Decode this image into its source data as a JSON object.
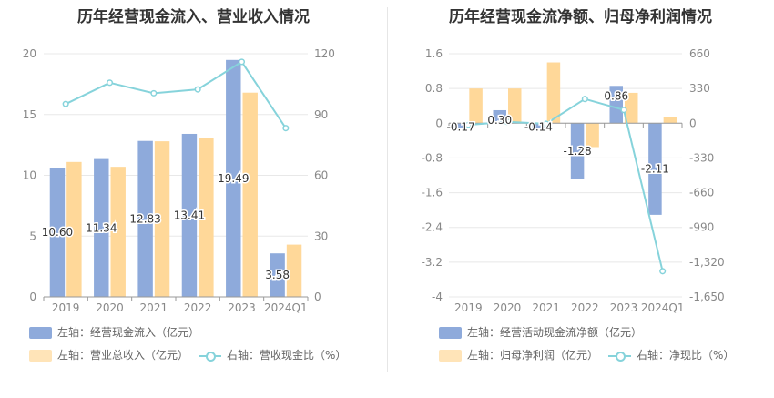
{
  "chart_data": [
    {
      "type": "bar",
      "title": "历年经营现金流入、营业收入情况",
      "categories": [
        "2019",
        "2020",
        "2021",
        "2022",
        "2023",
        "2024Q1"
      ],
      "left_axis": {
        "min": 0,
        "max": 20,
        "ticks": [
          "0",
          "5",
          "10",
          "15",
          "20"
        ]
      },
      "right_axis": {
        "min": 0,
        "max": 120,
        "ticks": [
          "0",
          "30",
          "60",
          "90",
          "120"
        ]
      },
      "series": [
        {
          "name": "左轴：经营现金流入（亿元）",
          "kind": "bar",
          "axis": "left",
          "color": "#8eaadb",
          "values": [
            10.6,
            11.34,
            12.83,
            13.41,
            19.49,
            3.58
          ],
          "labels": [
            "10.60",
            "11.34",
            "12.83",
            "13.41",
            "19.49",
            "3.58"
          ]
        },
        {
          "name": "左轴：营业总收入（亿元）",
          "kind": "bar",
          "axis": "left",
          "color": "#ffd899",
          "values": [
            11.1,
            10.7,
            12.8,
            13.1,
            16.8,
            4.3
          ]
        },
        {
          "name": "右轴：营收现金比（%）",
          "kind": "line",
          "axis": "right",
          "color": "#86d3db",
          "values": [
            95.2,
            105.7,
            100.5,
            102.4,
            116.0,
            83.3
          ]
        }
      ],
      "legend_position": "bottom-left",
      "grid": true
    },
    {
      "type": "bar",
      "title": "历年经营现金流净额、归母净利润情况",
      "categories": [
        "2019",
        "2020",
        "2021",
        "2022",
        "2023",
        "2024Q1"
      ],
      "left_axis": {
        "min": -4,
        "max": 1.6,
        "ticks": [
          "-4",
          "-3.2",
          "-2.4",
          "-1.6",
          "-0.8",
          "0",
          "0.8",
          "1.6"
        ]
      },
      "right_axis": {
        "min": -1650,
        "max": 660,
        "ticks": [
          "-1,650",
          "-1,320",
          "-990",
          "-660",
          "-330",
          "0",
          "330",
          "660"
        ]
      },
      "series": [
        {
          "name": "左轴：经营活动现金流净额（亿元）",
          "kind": "bar",
          "axis": "left",
          "color": "#8eaadb",
          "values": [
            -0.17,
            0.3,
            -0.14,
            -1.28,
            0.86,
            -2.11
          ],
          "labels": [
            "-0.17",
            "0.30",
            "-0.14",
            "-1.28",
            "0.86",
            "-2.11"
          ]
        },
        {
          "name": "左轴：归母净利润（亿元）",
          "kind": "bar",
          "axis": "left",
          "color": "#ffd899",
          "values": [
            0.8,
            0.8,
            1.4,
            -0.55,
            0.7,
            0.15
          ]
        },
        {
          "name": "右轴：净现比（%）",
          "kind": "line",
          "axis": "right",
          "color": "#86d3db",
          "values": [
            -16,
            13,
            -5,
            230,
            126,
            -1406
          ]
        }
      ],
      "legend_position": "bottom-left",
      "grid": true
    }
  ]
}
